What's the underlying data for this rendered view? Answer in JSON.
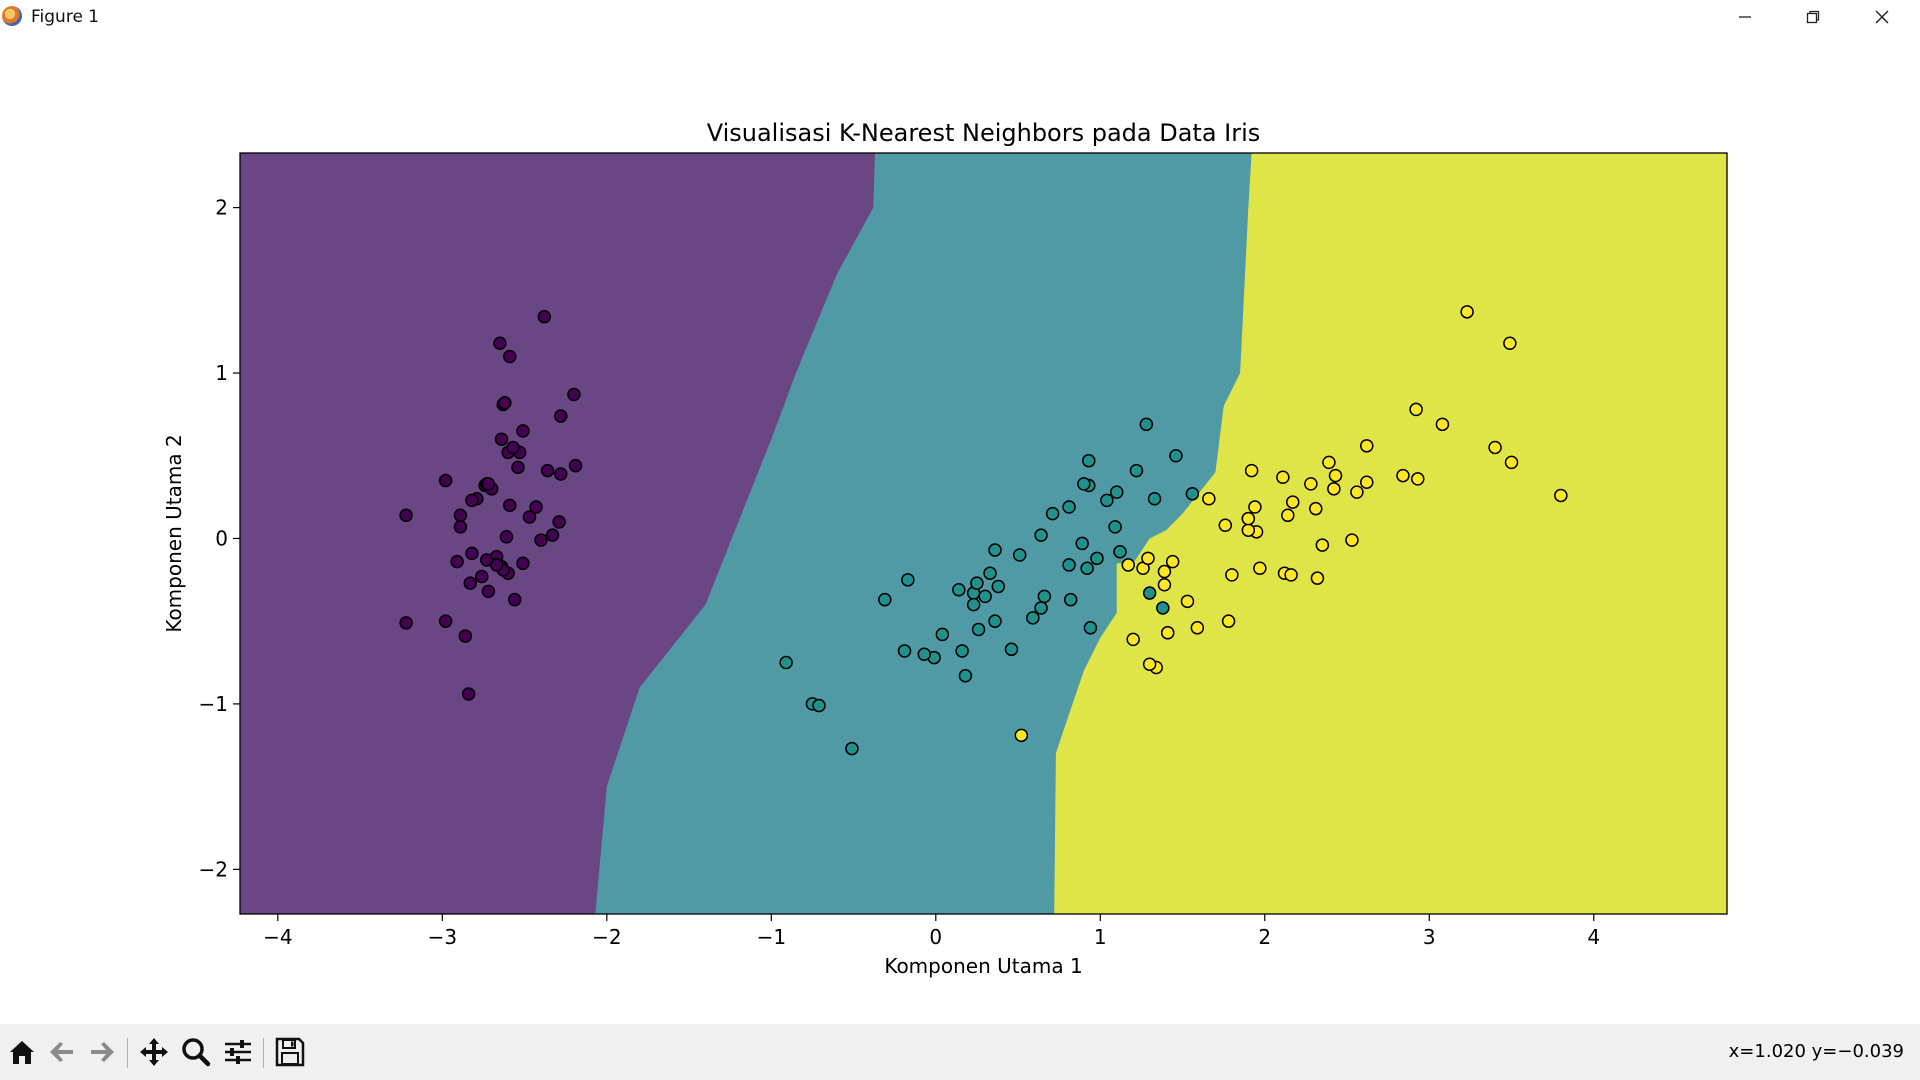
{
  "window": {
    "title": "Figure 1",
    "icon": "matplotlib-logo-icon",
    "controls": [
      "minimize-icon",
      "restore-icon",
      "close-icon"
    ]
  },
  "toolbar": {
    "buttons": [
      {
        "name": "home-icon",
        "tooltip": "Reset original view"
      },
      {
        "name": "back-arrow-icon",
        "tooltip": "Back to previous view"
      },
      {
        "name": "forward-arrow-icon",
        "tooltip": "Forward to next view"
      },
      {
        "name": "pan-move-icon",
        "tooltip": "Pan axes"
      },
      {
        "name": "zoom-magnifier-icon",
        "tooltip": "Zoom to rectangle"
      },
      {
        "name": "configure-subplots-icon",
        "tooltip": "Configure subplots"
      },
      {
        "name": "save-floppy-icon",
        "tooltip": "Save the figure"
      }
    ],
    "coords": "x=1.020 y=−0.039"
  },
  "chart_data": {
    "type": "scatter",
    "title": "Visualisasi K-Nearest Neighbors pada Data Iris",
    "xlabel": "Komponen Utama 1",
    "ylabel": "Komponen Utama 2",
    "xlim": [
      -4.23,
      4.81
    ],
    "ylim": [
      -2.27,
      2.33
    ],
    "xticks": [
      -4,
      -3,
      -2,
      -1,
      0,
      1,
      2,
      3,
      4
    ],
    "yticks": [
      -2,
      -1,
      0,
      1,
      2
    ],
    "xtick_labels": [
      "−4",
      "−3",
      "−2",
      "−1",
      "0",
      "1",
      "2",
      "3",
      "4"
    ],
    "ytick_labels": [
      "−2",
      "−1",
      "0",
      "1",
      "2"
    ],
    "grid": false,
    "legend": "none",
    "decision_regions": {
      "colors": [
        "#6b4685",
        "#509aa5",
        "#e0e547"
      ],
      "class_count": 3,
      "boundary_purple_teal": [
        [
          -2.07,
          -2.27
        ],
        [
          -2.0,
          -1.5
        ],
        [
          -1.8,
          -0.9
        ],
        [
          -1.4,
          -0.4
        ],
        [
          -1.2,
          0.1
        ],
        [
          -1.0,
          0.6
        ],
        [
          -0.85,
          1.0
        ],
        [
          -0.6,
          1.6
        ],
        [
          -0.38,
          2.0
        ],
        [
          -0.37,
          2.33
        ]
      ],
      "boundary_teal_yellow": [
        [
          0.72,
          -2.27
        ],
        [
          0.73,
          -1.3
        ],
        [
          0.78,
          -1.15
        ],
        [
          0.9,
          -0.8
        ],
        [
          1.0,
          -0.6
        ],
        [
          1.1,
          -0.45
        ],
        [
          1.1,
          -0.15
        ],
        [
          1.2,
          -0.15
        ],
        [
          1.3,
          0.0
        ],
        [
          1.4,
          0.05
        ],
        [
          1.5,
          0.15
        ],
        [
          1.7,
          0.4
        ],
        [
          1.75,
          0.8
        ],
        [
          1.85,
          1.0
        ],
        [
          1.9,
          2.0
        ],
        [
          1.92,
          2.33
        ]
      ]
    },
    "series": [
      {
        "class": 0,
        "color": "#440154",
        "points": [
          [
            -3.22,
            0.14
          ],
          [
            -2.89,
            0.07
          ],
          [
            -2.74,
            0.32
          ],
          [
            -2.73,
            0.33
          ],
          [
            -2.28,
            0.74
          ],
          [
            -2.82,
            -0.09
          ],
          [
            -2.64,
            -0.17
          ],
          [
            -2.89,
            0.14
          ],
          [
            -2.67,
            -0.11
          ],
          [
            -2.51,
            0.65
          ],
          [
            -2.61,
            0.01
          ],
          [
            -2.79,
            0.24
          ],
          [
            -2.63,
            0.81
          ],
          [
            -2.98,
            0.35
          ],
          [
            -2.59,
            1.1
          ],
          [
            -2.65,
            1.18
          ],
          [
            -2.38,
            1.34
          ],
          [
            -2.62,
            0.82
          ],
          [
            -2.2,
            0.87
          ],
          [
            -2.19,
            0.44
          ],
          [
            -2.6,
            0.52
          ],
          [
            -2.53,
            0.52
          ],
          [
            -2.83,
            -0.27
          ],
          [
            -2.54,
            0.43
          ],
          [
            -2.7,
            0.3
          ],
          [
            -2.57,
            0.55
          ],
          [
            -2.64,
            0.6
          ],
          [
            -2.28,
            0.39
          ],
          [
            -2.72,
            0.33
          ],
          [
            -2.29,
            0.1
          ],
          [
            -2.4,
            -0.01
          ],
          [
            -2.51,
            -0.15
          ],
          [
            -2.33,
            0.02
          ],
          [
            -2.43,
            0.19
          ],
          [
            -2.47,
            0.13
          ],
          [
            -2.36,
            0.41
          ],
          [
            -2.82,
            0.23
          ],
          [
            -2.59,
            0.2
          ],
          [
            -2.6,
            -0.21
          ],
          [
            -2.72,
            -0.32
          ],
          [
            -2.86,
            -0.59
          ],
          [
            -2.98,
            -0.5
          ],
          [
            -3.22,
            -0.51
          ],
          [
            -2.84,
            -0.94
          ],
          [
            -2.63,
            -0.19
          ],
          [
            -2.67,
            -0.16
          ],
          [
            -2.91,
            -0.14
          ],
          [
            -2.73,
            -0.13
          ],
          [
            -2.56,
            -0.37
          ],
          [
            -2.76,
            -0.23
          ]
        ]
      },
      {
        "class": 1,
        "color": "#21918c",
        "points": [
          [
            1.28,
            0.69
          ],
          [
            0.93,
            0.32
          ],
          [
            1.46,
            0.5
          ],
          [
            0.18,
            -0.83
          ],
          [
            1.09,
            0.07
          ],
          [
            0.64,
            -0.42
          ],
          [
            1.1,
            0.28
          ],
          [
            -0.75,
            -1.0
          ],
          [
            1.04,
            0.23
          ],
          [
            -0.01,
            -0.72
          ],
          [
            -0.51,
            -1.27
          ],
          [
            0.51,
            -0.1
          ],
          [
            0.26,
            -0.55
          ],
          [
            0.98,
            -0.12
          ],
          [
            -0.17,
            -0.25
          ],
          [
            0.93,
            0.47
          ],
          [
            0.66,
            -0.35
          ],
          [
            0.23,
            -0.33
          ],
          [
            0.94,
            -0.54
          ],
          [
            0.04,
            -0.58
          ],
          [
            1.12,
            -0.08
          ],
          [
            0.36,
            -0.07
          ],
          [
            1.3,
            -0.33
          ],
          [
            0.92,
            -0.18
          ],
          [
            0.71,
            0.15
          ],
          [
            0.9,
            0.33
          ],
          [
            1.33,
            0.24
          ],
          [
            1.56,
            0.27
          ],
          [
            0.81,
            -0.16
          ],
          [
            -0.31,
            -0.37
          ],
          [
            -0.07,
            -0.7
          ],
          [
            -0.19,
            -0.68
          ],
          [
            0.14,
            -0.31
          ],
          [
            1.38,
            -0.42
          ],
          [
            0.59,
            -0.48
          ],
          [
            0.81,
            0.19
          ],
          [
            1.22,
            0.41
          ],
          [
            0.82,
            -0.37
          ],
          [
            0.25,
            -0.27
          ],
          [
            0.16,
            -0.68
          ],
          [
            0.46,
            -0.67
          ],
          [
            0.89,
            -0.03
          ],
          [
            0.23,
            -0.4
          ],
          [
            -0.71,
            -1.01
          ],
          [
            0.36,
            -0.5
          ],
          [
            0.33,
            -0.21
          ],
          [
            0.38,
            -0.29
          ],
          [
            0.64,
            0.02
          ],
          [
            -0.91,
            -0.75
          ],
          [
            0.3,
            -0.35
          ]
        ]
      },
      {
        "class": 2,
        "color": "#fde725",
        "points": [
          [
            2.53,
            -0.01
          ],
          [
            1.41,
            -0.57
          ],
          [
            2.62,
            0.34
          ],
          [
            1.97,
            -0.18
          ],
          [
            2.35,
            -0.04
          ],
          [
            3.4,
            0.55
          ],
          [
            0.52,
            -1.19
          ],
          [
            2.93,
            0.36
          ],
          [
            2.32,
            -0.24
          ],
          [
            2.92,
            0.78
          ],
          [
            1.66,
            0.24
          ],
          [
            1.8,
            -0.22
          ],
          [
            2.17,
            0.22
          ],
          [
            1.34,
            -0.78
          ],
          [
            1.59,
            -0.54
          ],
          [
            1.9,
            0.12
          ],
          [
            1.95,
            0.04
          ],
          [
            3.49,
            1.18
          ],
          [
            3.8,
            0.26
          ],
          [
            1.3,
            -0.76
          ],
          [
            2.43,
            0.38
          ],
          [
            1.2,
            -0.61
          ],
          [
            3.5,
            0.46
          ],
          [
            1.39,
            -0.2
          ],
          [
            2.28,
            0.33
          ],
          [
            2.62,
            0.56
          ],
          [
            1.26,
            -0.18
          ],
          [
            1.29,
            -0.12
          ],
          [
            2.12,
            -0.21
          ],
          [
            2.39,
            0.46
          ],
          [
            2.84,
            0.38
          ],
          [
            3.23,
            1.37
          ],
          [
            2.16,
            -0.22
          ],
          [
            1.44,
            -0.14
          ],
          [
            1.78,
            -0.5
          ],
          [
            3.08,
            0.69
          ],
          [
            2.14,
            0.14
          ],
          [
            1.9,
            0.05
          ],
          [
            1.17,
            -0.16
          ],
          [
            2.11,
            0.37
          ],
          [
            2.31,
            0.18
          ],
          [
            1.92,
            0.41
          ],
          [
            1.41,
            -0.57
          ],
          [
            2.56,
            0.28
          ],
          [
            2.42,
            0.3
          ],
          [
            1.94,
            0.19
          ],
          [
            1.53,
            -0.38
          ],
          [
            1.76,
            0.08
          ],
          [
            1.9,
            0.12
          ],
          [
            1.39,
            -0.28
          ]
        ]
      }
    ]
  }
}
